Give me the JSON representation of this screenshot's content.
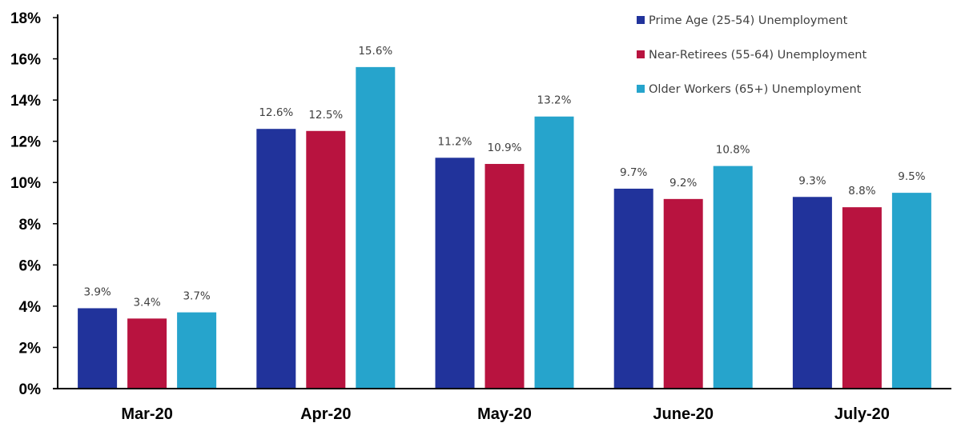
{
  "chart_data": {
    "type": "bar",
    "categories": [
      "Mar-20",
      "Apr-20",
      "May-20",
      "June-20",
      "July-20"
    ],
    "series": [
      {
        "name": "Prime Age (25-54) Unemployment",
        "color": "#21339b",
        "values": [
          3.9,
          12.6,
          11.2,
          9.7,
          9.3
        ]
      },
      {
        "name": "Near-Retirees (55-64) Unemployment",
        "color": "#b8133f",
        "values": [
          3.4,
          12.5,
          10.9,
          9.2,
          8.8
        ]
      },
      {
        "name": "Older Workers (65+) Unemployment",
        "color": "#26a4cc",
        "values": [
          3.7,
          15.6,
          13.2,
          10.8,
          9.5
        ]
      }
    ],
    "ylim": [
      0,
      18
    ],
    "yticks": [
      "0%",
      "2%",
      "4%",
      "6%",
      "8%",
      "10%",
      "12%",
      "14%",
      "16%",
      "18%"
    ],
    "value_suffix": "%",
    "legend_position": "top-right",
    "grid": false,
    "title": "",
    "xlabel": "",
    "ylabel": ""
  }
}
